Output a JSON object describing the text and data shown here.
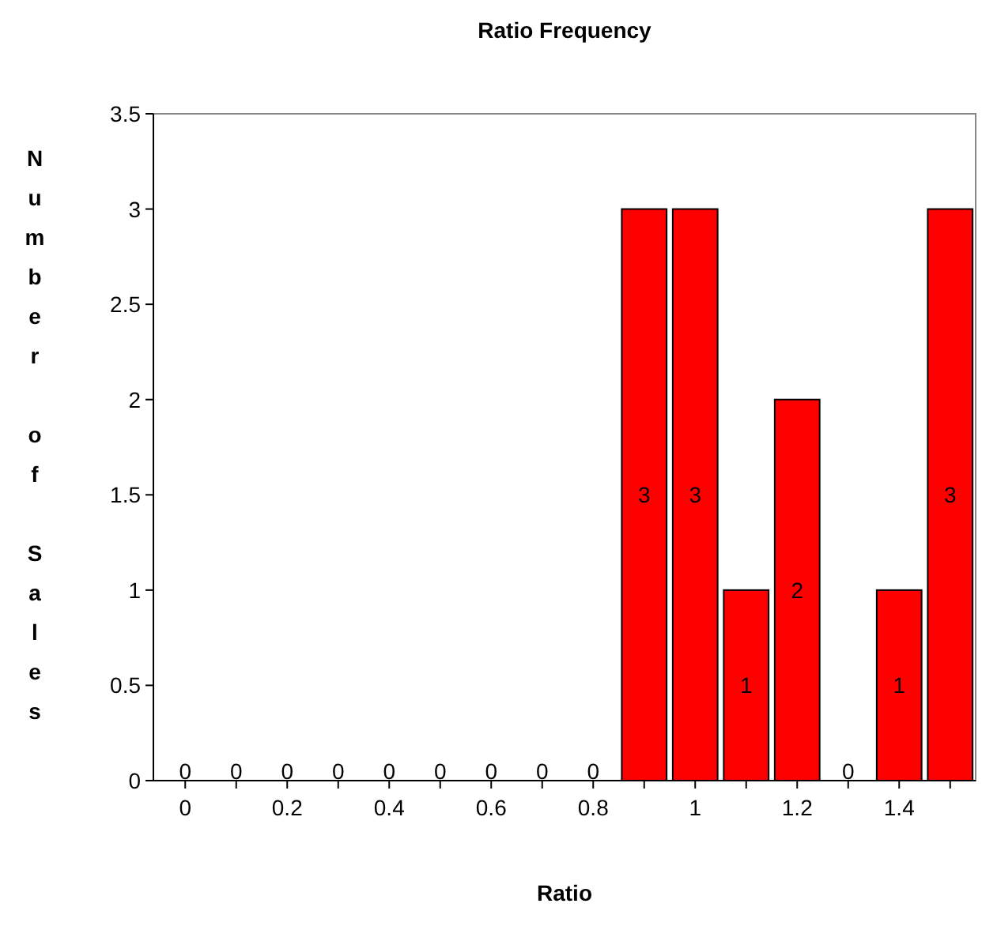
{
  "chart_data": {
    "type": "bar",
    "title": "Ratio Frequency",
    "xlabel": "Ratio",
    "ylabel": "Number of Sales",
    "categories": [
      "0",
      null,
      "0.2",
      null,
      "0.4",
      null,
      "0.6",
      null,
      "0.8",
      null,
      "1",
      null,
      "1.2",
      null,
      "1.4",
      null
    ],
    "values": [
      0,
      0,
      0,
      0,
      0,
      0,
      0,
      0,
      0,
      3,
      3,
      1,
      2,
      0,
      1,
      3
    ],
    "color": "#ff0000",
    "ylim": [
      0,
      3.5
    ],
    "yticks": [
      0,
      0.5,
      1,
      1.5,
      2,
      2.5,
      3,
      3.5
    ],
    "data_labels": true,
    "grid": false
  }
}
